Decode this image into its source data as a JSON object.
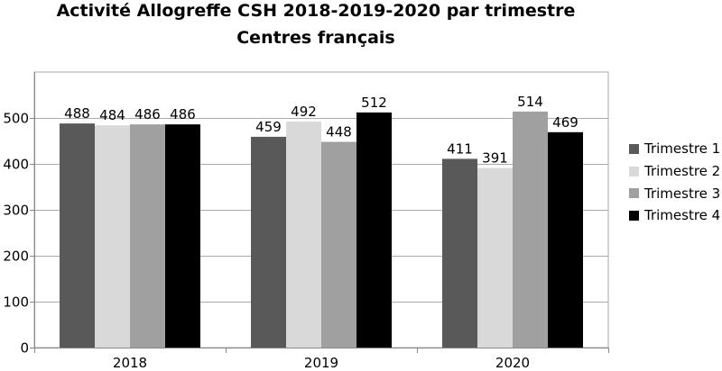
{
  "chart_data": {
    "type": "bar",
    "title": "Activité Allogreffe CSH 2018-2019-2020 par trimestre",
    "subtitle": "Centres français",
    "categories": [
      "2018",
      "2019",
      "2020"
    ],
    "series": [
      {
        "name": "Trimestre 1",
        "color": "#595959",
        "values": [
          488,
          459,
          411
        ]
      },
      {
        "name": "Trimestre 2",
        "color": "#d9d9d9",
        "values": [
          484,
          492,
          391
        ]
      },
      {
        "name": "Trimestre 3",
        "color": "#a0a0a0",
        "values": [
          486,
          448,
          514
        ]
      },
      {
        "name": "Trimestre 4",
        "color": "#000000",
        "values": [
          486,
          512,
          469
        ]
      }
    ],
    "ylim": [
      0,
      600
    ],
    "yticks": [
      "0",
      "100",
      "200",
      "300",
      "400",
      "500"
    ],
    "grid": true,
    "legend_position": "right"
  }
}
